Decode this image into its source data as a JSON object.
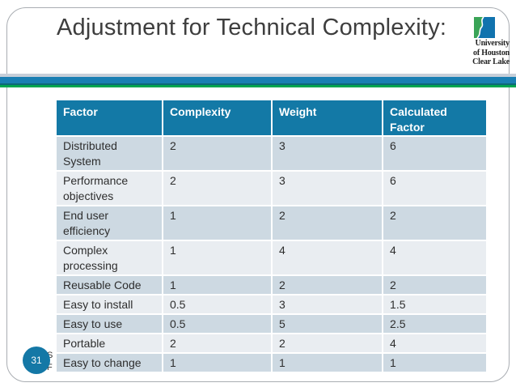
{
  "slide": {
    "title": "Adjustment for Technical Complexity:",
    "page_number": "31"
  },
  "logo": {
    "name": "university-of-houston-clear-lake-logo",
    "lines": [
      "University",
      "of Houston",
      "Clear Lake"
    ]
  },
  "colors": {
    "header_bg": "#1379A6",
    "row_dark": "#CDD9E2",
    "row_light": "#E9EDF1",
    "stripe_gray": "#C7CFD9",
    "stripe_blue": "#1A7FB3",
    "stripe_teal": "#0E6878",
    "stripe_green": "#00A551",
    "page_circle": "#1478A6",
    "logo_green": "#3AA457",
    "logo_blue": "#1173AE"
  },
  "table": {
    "headers": [
      "Factor",
      "Complexity",
      "Weight",
      "Calculated Factor"
    ],
    "rows": [
      {
        "factor": "Distributed System",
        "complexity": "2",
        "weight": "3",
        "calculated": "6"
      },
      {
        "factor": "Performance objectives",
        "complexity": "2",
        "weight": "3",
        "calculated": "6"
      },
      {
        "factor": "End user efficiency",
        "complexity": "1",
        "weight": "2",
        "calculated": "2"
      },
      {
        "factor": "Complex processing",
        "complexity": "1",
        "weight": "4",
        "calculated": "4"
      },
      {
        "factor": "Reusable Code",
        "complexity": "1",
        "weight": "2",
        "calculated": "2"
      },
      {
        "factor": "Easy to install",
        "complexity": "0.5",
        "weight": "3",
        "calculated": "1.5"
      },
      {
        "factor": "Easy to use",
        "complexity": "0.5",
        "weight": "5",
        "calculated": "2.5"
      },
      {
        "factor": "Portable",
        "complexity": "2",
        "weight": "2",
        "calculated": "4"
      },
      {
        "factor": "Easy to change",
        "complexity": "1",
        "weight": "1",
        "calculated": "1"
      }
    ]
  },
  "fragments": {
    "line1": "S",
    "line2": "F"
  }
}
